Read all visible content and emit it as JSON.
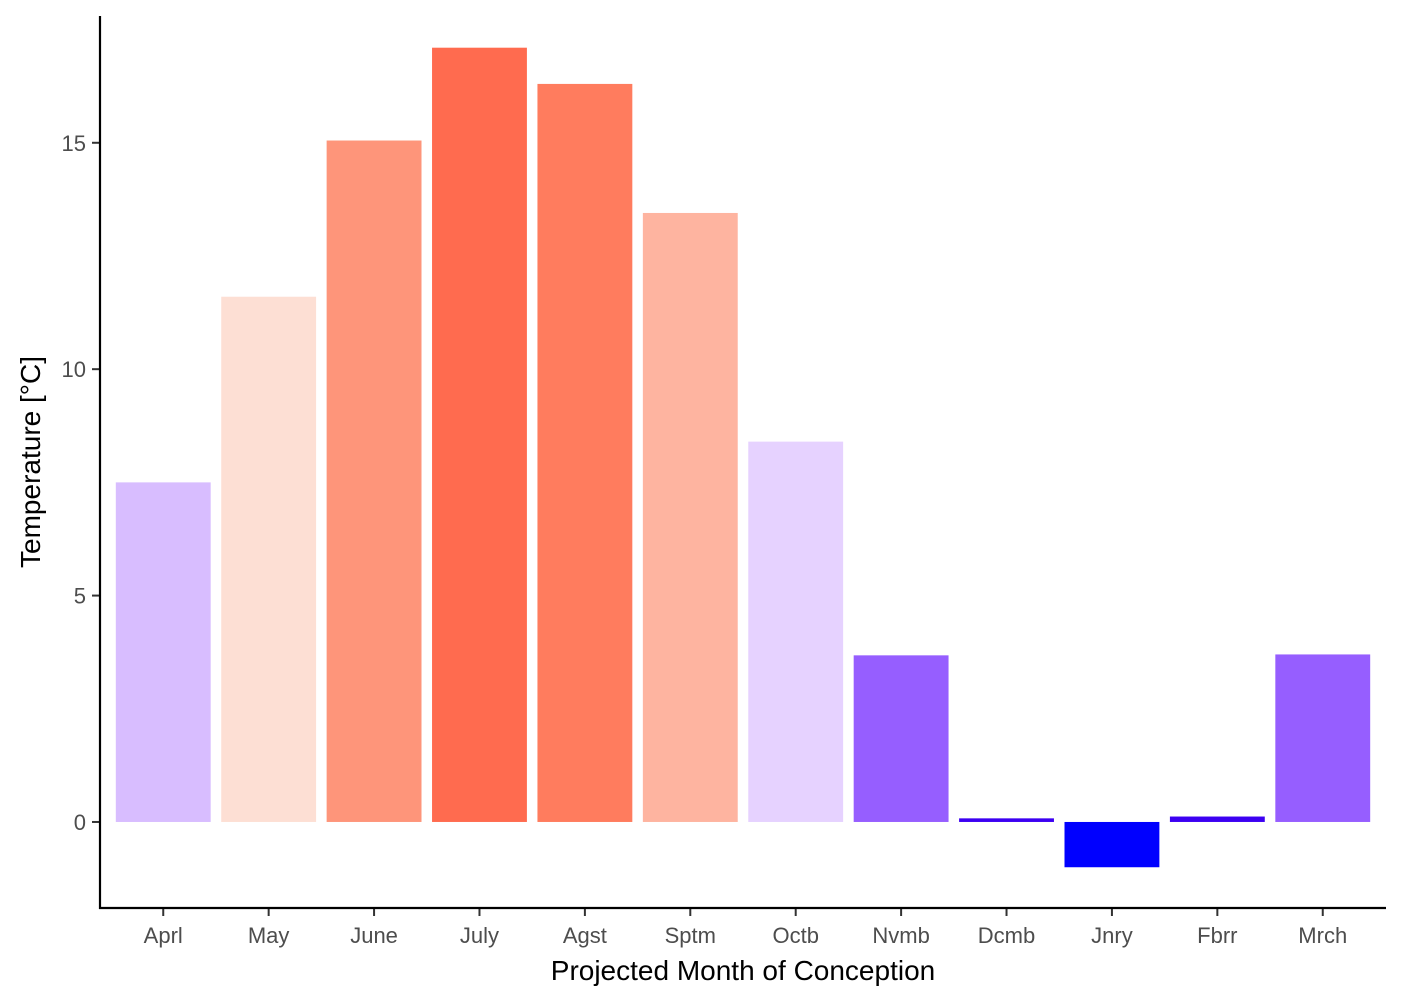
{
  "chart_data": {
    "type": "bar",
    "categories": [
      "Aprl",
      "May",
      "June",
      "July",
      "Agst",
      "Sptm",
      "Octb",
      "Nvmb",
      "Dcmb",
      "Jnry",
      "Fbrr",
      "Mrch"
    ],
    "values": [
      7.5,
      11.6,
      15.05,
      17.1,
      16.3,
      13.45,
      8.4,
      3.68,
      0.08,
      -1.0,
      0.12,
      3.7
    ],
    "colors": [
      "#d8bdff",
      "#fddfd4",
      "#fe957a",
      "#ff6b4f",
      "#ff7c5e",
      "#feb4a0",
      "#e6d2ff",
      "#965eff",
      "#3c00f2",
      "#0000ff",
      "#3c00f2",
      "#965eff"
    ],
    "title": "",
    "xlabel": "Projected Month of Conception",
    "ylabel": "Temperature [°C]",
    "ylim": [
      -1.9,
      17.8
    ],
    "yticks": [
      0,
      5,
      10,
      15
    ],
    "legend": "none",
    "grid": false
  }
}
